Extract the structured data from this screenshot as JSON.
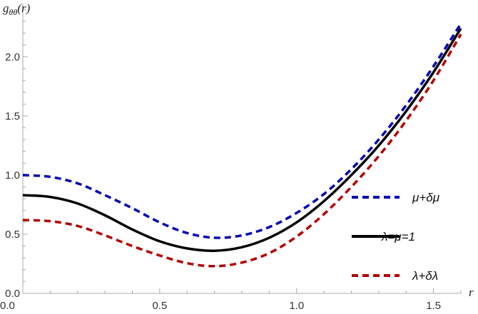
{
  "chart_data": {
    "type": "line",
    "title": "",
    "xlabel": "r",
    "ylabel": "gθθ(r)",
    "ylabel_parts": {
      "base": "g",
      "sub": "θθ",
      "arg": "(r)"
    },
    "xlim": [
      0,
      1.6
    ],
    "ylim": [
      0,
      2.45
    ],
    "x_ticks": [
      "0.0",
      "0.5",
      "1.0",
      "1.5"
    ],
    "y_ticks": [
      "0.0",
      "0.5",
      "1.0",
      "1.5",
      "2.0"
    ],
    "grid": false,
    "legend_placement": "right",
    "x": [
      0,
      0.1,
      0.2,
      0.3,
      0.4,
      0.5,
      0.6,
      0.7,
      0.8,
      0.9,
      1.0,
      1.1,
      1.2,
      1.3,
      1.4,
      1.5,
      1.6
    ],
    "series": [
      {
        "name": "μ+δμ",
        "color": "#0000b3",
        "style": "dashed",
        "values": [
          1.0,
          0.985,
          0.93,
          0.83,
          0.72,
          0.6,
          0.51,
          0.47,
          0.49,
          0.56,
          0.68,
          0.84,
          1.05,
          1.3,
          1.59,
          1.92,
          2.28
        ]
      },
      {
        "name": "λ=μ=1",
        "color": "#000000",
        "style": "solid",
        "values": [
          0.83,
          0.815,
          0.76,
          0.66,
          0.54,
          0.44,
          0.38,
          0.36,
          0.39,
          0.47,
          0.6,
          0.78,
          1.0,
          1.25,
          1.54,
          1.87,
          2.24
        ]
      },
      {
        "name": "λ+δλ",
        "color": "#b30000",
        "style": "dashed",
        "values": [
          0.62,
          0.61,
          0.57,
          0.49,
          0.4,
          0.32,
          0.255,
          0.23,
          0.26,
          0.34,
          0.48,
          0.67,
          0.9,
          1.16,
          1.46,
          1.8,
          2.19
        ]
      }
    ]
  }
}
